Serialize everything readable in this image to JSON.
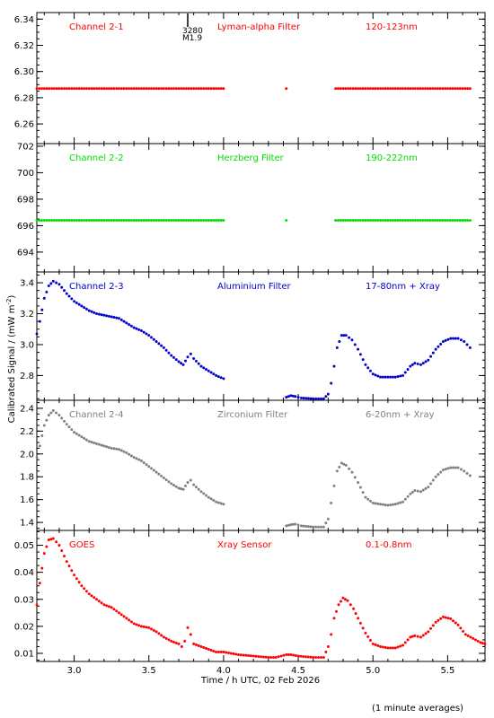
{
  "figure": {
    "y_axis_label": "Calibrated Signal / (mW m",
    "y_axis_label_sup": "-2",
    "y_axis_label_end": ")",
    "x_axis_label": "Time / h UTC, 02 Feb 2026",
    "footnote": "(1 minute averages)",
    "flare_marker_number": "3280",
    "flare_marker_class": "M1.9",
    "flare_marker_time": 3.76
  },
  "chart_data": [
    {
      "type": "scatter",
      "title": "Channel 2-1",
      "filter": "Lyman-alpha Filter",
      "band": "120-123nm",
      "color": "#ff0000",
      "ylim": [
        6.245,
        6.345
      ],
      "yticks": [
        6.26,
        6.28,
        6.3,
        6.32,
        6.34
      ],
      "ytick_labels": [
        "6.26",
        "6.28",
        "6.30",
        "6.32",
        "6.34"
      ],
      "xlim": [
        2.75,
        5.75
      ],
      "points": [
        [
          2.75,
          6.287
        ],
        [
          3.0,
          6.287
        ],
        [
          3.25,
          6.287
        ],
        [
          3.5,
          6.287
        ],
        [
          3.75,
          6.287
        ],
        [
          4.0,
          6.287
        ],
        [
          4.42,
          6.287
        ],
        [
          4.75,
          6.287
        ],
        [
          5.0,
          6.287
        ],
        [
          5.25,
          6.287
        ],
        [
          5.5,
          6.287
        ],
        [
          5.65,
          6.287
        ]
      ]
    },
    {
      "type": "scatter",
      "title": "Channel 2-2",
      "filter": "Herzberg Filter",
      "band": "190-222nm",
      "color": "#00dd00",
      "ylim": [
        692.5,
        702.2
      ],
      "yticks": [
        694,
        696,
        698,
        700,
        702
      ],
      "ytick_labels": [
        "694",
        "696",
        "698",
        "700",
        "702"
      ],
      "xlim": [
        2.75,
        5.75
      ],
      "points": [
        [
          2.75,
          696.4
        ],
        [
          3.0,
          696.4
        ],
        [
          3.25,
          696.4
        ],
        [
          3.5,
          696.4
        ],
        [
          3.75,
          696.4
        ],
        [
          4.0,
          696.4
        ],
        [
          4.42,
          696.4
        ],
        [
          4.75,
          696.4
        ],
        [
          5.0,
          696.4
        ],
        [
          5.25,
          696.4
        ],
        [
          5.5,
          696.4
        ],
        [
          5.65,
          696.4
        ]
      ]
    },
    {
      "type": "scatter",
      "title": "Channel 2-3",
      "filter": "Aluminium Filter",
      "band": "17-80nm + Xray",
      "color": "#0000cc",
      "ylim": [
        2.64,
        3.47
      ],
      "yticks": [
        2.8,
        3.0,
        3.2,
        3.4
      ],
      "ytick_labels": [
        "2.8",
        "3.0",
        "3.2",
        "3.4"
      ],
      "xlim": [
        2.75,
        5.75
      ],
      "points": [
        [
          2.75,
          3.07
        ],
        [
          2.77,
          3.15
        ],
        [
          2.8,
          3.3
        ],
        [
          2.83,
          3.38
        ],
        [
          2.86,
          3.41
        ],
        [
          2.9,
          3.39
        ],
        [
          2.95,
          3.33
        ],
        [
          3.0,
          3.28
        ],
        [
          3.05,
          3.25
        ],
        [
          3.1,
          3.22
        ],
        [
          3.15,
          3.2
        ],
        [
          3.2,
          3.19
        ],
        [
          3.25,
          3.18
        ],
        [
          3.3,
          3.17
        ],
        [
          3.35,
          3.14
        ],
        [
          3.4,
          3.11
        ],
        [
          3.45,
          3.09
        ],
        [
          3.5,
          3.06
        ],
        [
          3.55,
          3.02
        ],
        [
          3.6,
          2.98
        ],
        [
          3.65,
          2.93
        ],
        [
          3.7,
          2.89
        ],
        [
          3.73,
          2.87
        ],
        [
          3.76,
          2.92
        ],
        [
          3.78,
          2.94
        ],
        [
          3.8,
          2.91
        ],
        [
          3.85,
          2.86
        ],
        [
          3.9,
          2.83
        ],
        [
          3.95,
          2.8
        ],
        [
          4.0,
          2.78
        ],
        [
          4.42,
          2.66
        ],
        [
          4.45,
          2.67
        ],
        [
          4.48,
          2.665
        ],
        [
          4.52,
          2.655
        ],
        [
          4.6,
          2.65
        ],
        [
          4.67,
          2.65
        ],
        [
          4.7,
          2.68
        ],
        [
          4.72,
          2.75
        ],
        [
          4.74,
          2.86
        ],
        [
          4.76,
          2.98
        ],
        [
          4.79,
          3.06
        ],
        [
          4.82,
          3.06
        ],
        [
          4.86,
          3.03
        ],
        [
          4.9,
          2.97
        ],
        [
          4.95,
          2.87
        ],
        [
          5.0,
          2.81
        ],
        [
          5.05,
          2.79
        ],
        [
          5.1,
          2.79
        ],
        [
          5.15,
          2.79
        ],
        [
          5.2,
          2.8
        ],
        [
          5.25,
          2.86
        ],
        [
          5.28,
          2.88
        ],
        [
          5.32,
          2.87
        ],
        [
          5.37,
          2.9
        ],
        [
          5.42,
          2.97
        ],
        [
          5.47,
          3.02
        ],
        [
          5.52,
          3.04
        ],
        [
          5.57,
          3.04
        ],
        [
          5.61,
          3.02
        ],
        [
          5.65,
          2.98
        ]
      ]
    },
    {
      "type": "scatter",
      "title": "Channel 2-4",
      "filter": "Zirconium Filter",
      "band": "6-20nm + Xray",
      "color": "#808080",
      "ylim": [
        1.33,
        2.47
      ],
      "yticks": [
        1.4,
        1.6,
        1.8,
        2.0,
        2.2,
        2.4
      ],
      "ytick_labels": [
        "1.4",
        "1.6",
        "1.8",
        "2.0",
        "2.2",
        "2.4"
      ],
      "xlim": [
        2.75,
        5.75
      ],
      "points": [
        [
          2.75,
          1.97
        ],
        [
          2.77,
          2.07
        ],
        [
          2.8,
          2.25
        ],
        [
          2.83,
          2.34
        ],
        [
          2.86,
          2.38
        ],
        [
          2.9,
          2.34
        ],
        [
          2.95,
          2.26
        ],
        [
          3.0,
          2.19
        ],
        [
          3.05,
          2.15
        ],
        [
          3.1,
          2.11
        ],
        [
          3.15,
          2.09
        ],
        [
          3.2,
          2.07
        ],
        [
          3.25,
          2.05
        ],
        [
          3.3,
          2.04
        ],
        [
          3.35,
          2.01
        ],
        [
          3.4,
          1.97
        ],
        [
          3.45,
          1.94
        ],
        [
          3.5,
          1.89
        ],
        [
          3.55,
          1.84
        ],
        [
          3.6,
          1.79
        ],
        [
          3.65,
          1.74
        ],
        [
          3.7,
          1.7
        ],
        [
          3.73,
          1.69
        ],
        [
          3.76,
          1.75
        ],
        [
          3.78,
          1.77
        ],
        [
          3.8,
          1.73
        ],
        [
          3.85,
          1.67
        ],
        [
          3.9,
          1.62
        ],
        [
          3.95,
          1.58
        ],
        [
          4.0,
          1.56
        ],
        [
          4.42,
          1.37
        ],
        [
          4.45,
          1.38
        ],
        [
          4.48,
          1.385
        ],
        [
          4.52,
          1.37
        ],
        [
          4.6,
          1.36
        ],
        [
          4.67,
          1.36
        ],
        [
          4.7,
          1.43
        ],
        [
          4.72,
          1.57
        ],
        [
          4.74,
          1.72
        ],
        [
          4.76,
          1.85
        ],
        [
          4.79,
          1.92
        ],
        [
          4.82,
          1.9
        ],
        [
          4.86,
          1.84
        ],
        [
          4.9,
          1.75
        ],
        [
          4.95,
          1.62
        ],
        [
          5.0,
          1.57
        ],
        [
          5.05,
          1.56
        ],
        [
          5.1,
          1.55
        ],
        [
          5.15,
          1.56
        ],
        [
          5.2,
          1.58
        ],
        [
          5.25,
          1.65
        ],
        [
          5.28,
          1.68
        ],
        [
          5.32,
          1.67
        ],
        [
          5.37,
          1.71
        ],
        [
          5.42,
          1.8
        ],
        [
          5.47,
          1.86
        ],
        [
          5.52,
          1.88
        ],
        [
          5.57,
          1.88
        ],
        [
          5.61,
          1.85
        ],
        [
          5.65,
          1.81
        ]
      ]
    },
    {
      "type": "scatter",
      "title": "GOES",
      "filter": "Xray Sensor",
      "band": "0.1-0.8nm",
      "color": "#ff0000",
      "ylim": [
        0.007,
        0.0555
      ],
      "yticks": [
        0.01,
        0.02,
        0.03,
        0.04,
        0.05
      ],
      "ytick_labels": [
        "0.01",
        "0.02",
        "0.03",
        "0.04",
        "0.05"
      ],
      "xticks": [
        3.0,
        3.5,
        4.0,
        4.5,
        5.0,
        5.5
      ],
      "xtick_labels": [
        "3.0",
        "3.5",
        "4.0",
        "4.5",
        "5.0",
        "5.5"
      ],
      "xlim": [
        2.75,
        5.75
      ],
      "points": [
        [
          2.75,
          0.028
        ],
        [
          2.77,
          0.036
        ],
        [
          2.8,
          0.047
        ],
        [
          2.83,
          0.052
        ],
        [
          2.86,
          0.0525
        ],
        [
          2.9,
          0.05
        ],
        [
          2.95,
          0.044
        ],
        [
          3.0,
          0.039
        ],
        [
          3.05,
          0.035
        ],
        [
          3.1,
          0.032
        ],
        [
          3.15,
          0.03
        ],
        [
          3.2,
          0.028
        ],
        [
          3.25,
          0.027
        ],
        [
          3.3,
          0.025
        ],
        [
          3.35,
          0.023
        ],
        [
          3.4,
          0.021
        ],
        [
          3.45,
          0.02
        ],
        [
          3.5,
          0.0195
        ],
        [
          3.55,
          0.018
        ],
        [
          3.6,
          0.016
        ],
        [
          3.65,
          0.0145
        ],
        [
          3.7,
          0.0135
        ],
        [
          3.72,
          0.0125
        ],
        [
          3.74,
          0.0145
        ],
        [
          3.76,
          0.0195
        ],
        [
          3.78,
          0.017
        ],
        [
          3.8,
          0.0135
        ],
        [
          3.85,
          0.0125
        ],
        [
          3.9,
          0.0115
        ],
        [
          3.95,
          0.0105
        ],
        [
          4.0,
          0.0105
        ],
        [
          4.1,
          0.0095
        ],
        [
          4.2,
          0.009
        ],
        [
          4.3,
          0.0085
        ],
        [
          4.35,
          0.0085
        ],
        [
          4.42,
          0.0095
        ],
        [
          4.45,
          0.0095
        ],
        [
          4.5,
          0.009
        ],
        [
          4.6,
          0.0085
        ],
        [
          4.67,
          0.0085
        ],
        [
          4.7,
          0.0125
        ],
        [
          4.72,
          0.017
        ],
        [
          4.74,
          0.023
        ],
        [
          4.77,
          0.028
        ],
        [
          4.8,
          0.0305
        ],
        [
          4.83,
          0.0295
        ],
        [
          4.87,
          0.0265
        ],
        [
          4.9,
          0.023
        ],
        [
          4.95,
          0.0175
        ],
        [
          5.0,
          0.0135
        ],
        [
          5.05,
          0.0125
        ],
        [
          5.1,
          0.012
        ],
        [
          5.15,
          0.012
        ],
        [
          5.2,
          0.013
        ],
        [
          5.25,
          0.016
        ],
        [
          5.28,
          0.0165
        ],
        [
          5.32,
          0.016
        ],
        [
          5.37,
          0.018
        ],
        [
          5.42,
          0.0215
        ],
        [
          5.47,
          0.0235
        ],
        [
          5.52,
          0.0228
        ],
        [
          5.57,
          0.0205
        ],
        [
          5.62,
          0.017
        ],
        [
          5.67,
          0.0155
        ],
        [
          5.72,
          0.014
        ],
        [
          5.75,
          0.0135
        ]
      ]
    }
  ]
}
